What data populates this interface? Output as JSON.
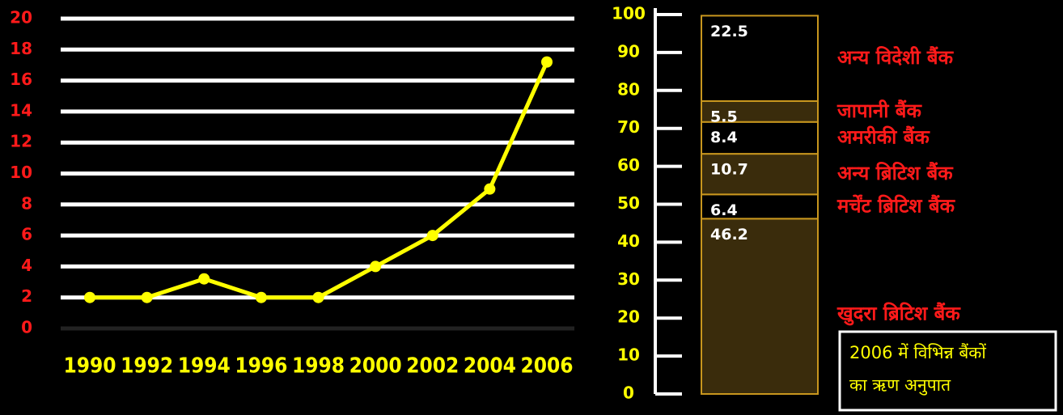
{
  "chart_data": [
    {
      "type": "line",
      "x": [
        1990,
        1992,
        1994,
        1996,
        1998,
        2000,
        2002,
        2004,
        2006
      ],
      "values": [
        2,
        2,
        3.2,
        2,
        2,
        4,
        6,
        9,
        17.2
      ],
      "color": "#ffff00",
      "xlim": [
        1990,
        2006
      ],
      "xticks": [
        1990,
        1992,
        1994,
        1996,
        1998,
        2000,
        2002,
        2004,
        2006
      ],
      "ylim": [
        0,
        20
      ],
      "yticks": [
        0,
        2,
        4,
        6,
        8,
        10,
        12,
        14,
        16,
        18,
        20
      ],
      "grid": true
    },
    {
      "type": "stacked_bar",
      "ylim": [
        0,
        100
      ],
      "yticks": [
        0,
        10,
        20,
        30,
        40,
        50,
        60,
        70,
        80,
        90,
        100
      ],
      "series": [
        {
          "name": "खुदरा ब्रिटिश बैंक",
          "color": "#3a2c0c",
          "values": [
            46.2
          ]
        },
        {
          "name": "मर्चेंट ब्रिटिश बैंक",
          "color": "#000000",
          "values": [
            6.4
          ]
        },
        {
          "name": "अन्य ब्रिटिश बैंक",
          "color": "#3a2c0c",
          "values": [
            10.7
          ]
        },
        {
          "name": "अमरीकी बैंक",
          "color": "#000000",
          "values": [
            8.4
          ]
        },
        {
          "name": "जापानी बैंक",
          "color": "#3a2c0c",
          "values": [
            5.5
          ]
        },
        {
          "name": "अन्य विदेशी बैंक",
          "color": "#000000",
          "values": [
            22.5
          ]
        }
      ],
      "annotations": [
        "2006 में विभिन्न बैंकों",
        "का ऋण अनुपात"
      ]
    }
  ]
}
